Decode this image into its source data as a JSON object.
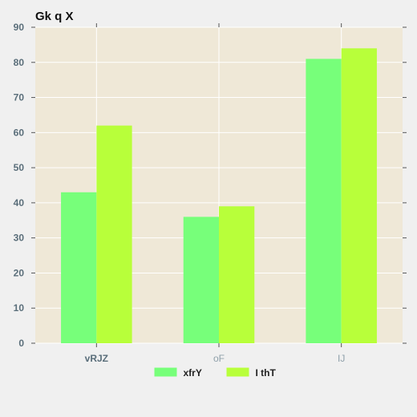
{
  "chart_data": {
    "type": "bar",
    "title": "Gk q X",
    "xlabel": "",
    "ylabel": "",
    "categories": [
      "vRJZ",
      "oF",
      "IJ"
    ],
    "series": [
      {
        "name": "xfrY",
        "values": [
          43,
          36,
          81
        ],
        "color": "#77ff7a"
      },
      {
        "name": "I thT",
        "values": [
          62,
          39,
          84
        ],
        "color": "#b8ff3a"
      }
    ],
    "ylim": [
      0,
      90
    ],
    "yticks": [
      0,
      10,
      20,
      30,
      40,
      50,
      60,
      70,
      80,
      90
    ],
    "grid": true,
    "legend_position": "bottom-center",
    "colors": {
      "plot_background": "#efe8d7",
      "page_background": "#f0f0f0",
      "grid": "#ffffff"
    }
  }
}
